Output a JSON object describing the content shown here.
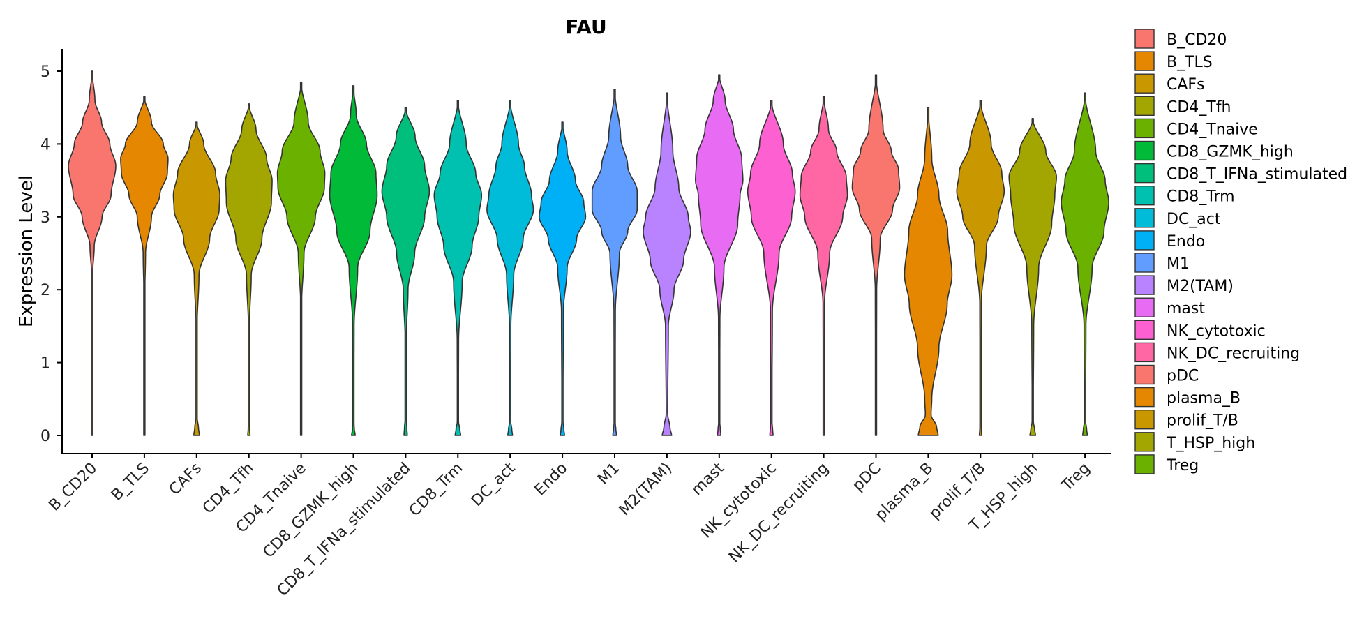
{
  "chart_data": {
    "type": "violin",
    "title": "FAU",
    "xlabel": "",
    "ylabel": "Expression Level",
    "ylim": [
      -0.25,
      5.3
    ],
    "yticks": [
      0,
      1,
      2,
      3,
      4,
      5
    ],
    "legend_position": "right",
    "categories": [
      "B_CD20",
      "B_TLS",
      "CAFs",
      "CD4_Tfh",
      "CD4_Tnaive",
      "CD8_GZMK_high",
      "CD8_T_IFNa_stimulated",
      "CD8_Trm",
      "DC_act",
      "Endo",
      "M1",
      "M2(TAM)",
      "mast",
      "NK_cytotoxic",
      "NK_DC_recruiting",
      "pDC",
      "plasma_B",
      "prolif_T/B",
      "T_HSP_high",
      "Treg"
    ],
    "colors": [
      "#F8766D",
      "#E58700",
      "#C99800",
      "#A3A500",
      "#6BB100",
      "#00BA38",
      "#00BF7D",
      "#00C0AF",
      "#00BCD8",
      "#00B0F6",
      "#619CFF",
      "#B983FF",
      "#E76BF3",
      "#FD61D1",
      "#FF67A4",
      "#F8766D",
      "#E58700",
      "#C99800",
      "#A3A500",
      "#6BB100"
    ],
    "series": [
      {
        "name": "B_CD20",
        "max": 5.0,
        "profile": [
          [
            0,
            0.012
          ],
          [
            1.5,
            0.01
          ],
          [
            2.2,
            0.02
          ],
          [
            2.6,
            0.09
          ],
          [
            3.0,
            0.42
          ],
          [
            3.3,
            0.8
          ],
          [
            3.7,
            1.0
          ],
          [
            4.0,
            0.75
          ],
          [
            4.3,
            0.4
          ],
          [
            4.6,
            0.12
          ],
          [
            5.0,
            0.0
          ]
        ]
      },
      {
        "name": "B_TLS",
        "max": 4.65,
        "profile": [
          [
            0,
            0.012
          ],
          [
            1.8,
            0.01
          ],
          [
            2.5,
            0.05
          ],
          [
            3.0,
            0.3
          ],
          [
            3.3,
            0.65
          ],
          [
            3.6,
            0.97
          ],
          [
            3.8,
            1.0
          ],
          [
            4.0,
            0.8
          ],
          [
            4.3,
            0.3
          ],
          [
            4.65,
            0.0
          ]
        ]
      },
      {
        "name": "CAFs",
        "max": 4.3,
        "profile": [
          [
            0,
            0.12
          ],
          [
            0.1,
            0.08
          ],
          [
            0.25,
            0.02
          ],
          [
            1.5,
            0.02
          ],
          [
            2.2,
            0.1
          ],
          [
            2.7,
            0.55
          ],
          [
            3.1,
            0.95
          ],
          [
            3.3,
            0.98
          ],
          [
            3.6,
            0.8
          ],
          [
            4.0,
            0.3
          ],
          [
            4.3,
            0.0
          ]
        ]
      },
      {
        "name": "CD4_Tfh",
        "max": 4.55,
        "profile": [
          [
            0,
            0.05
          ],
          [
            0.08,
            0.03
          ],
          [
            0.2,
            0.012
          ],
          [
            1.5,
            0.02
          ],
          [
            2.2,
            0.1
          ],
          [
            2.7,
            0.55
          ],
          [
            3.2,
            0.95
          ],
          [
            3.5,
            0.98
          ],
          [
            3.8,
            0.75
          ],
          [
            4.2,
            0.3
          ],
          [
            4.55,
            0.0
          ]
        ]
      },
      {
        "name": "CD4_Tnaive",
        "max": 4.85,
        "profile": [
          [
            0,
            0.012
          ],
          [
            1.8,
            0.02
          ],
          [
            2.5,
            0.12
          ],
          [
            3.0,
            0.6
          ],
          [
            3.4,
            0.98
          ],
          [
            3.6,
            1.0
          ],
          [
            3.9,
            0.8
          ],
          [
            4.3,
            0.3
          ],
          [
            4.85,
            0.0
          ]
        ]
      },
      {
        "name": "CD8_GZMK_high",
        "max": 4.8,
        "profile": [
          [
            0,
            0.08
          ],
          [
            0.08,
            0.04
          ],
          [
            0.2,
            0.015
          ],
          [
            1.5,
            0.03
          ],
          [
            2.3,
            0.18
          ],
          [
            2.8,
            0.7
          ],
          [
            3.3,
            1.0
          ],
          [
            3.6,
            0.95
          ],
          [
            4.0,
            0.55
          ],
          [
            4.4,
            0.12
          ],
          [
            4.8,
            0.0
          ]
        ]
      },
      {
        "name": "CD8_T_IFNa_stimulated",
        "max": 4.5,
        "profile": [
          [
            0,
            0.07
          ],
          [
            0.1,
            0.05
          ],
          [
            0.25,
            0.015
          ],
          [
            1.3,
            0.02
          ],
          [
            2.0,
            0.1
          ],
          [
            2.5,
            0.38
          ],
          [
            3.0,
            0.8
          ],
          [
            3.35,
            1.0
          ],
          [
            3.7,
            0.8
          ],
          [
            4.1,
            0.4
          ],
          [
            4.5,
            0.0
          ]
        ]
      },
      {
        "name": "CD8_Trm",
        "max": 4.6,
        "profile": [
          [
            0,
            0.12
          ],
          [
            0.08,
            0.08
          ],
          [
            0.2,
            0.02
          ],
          [
            1.3,
            0.03
          ],
          [
            2.1,
            0.18
          ],
          [
            2.6,
            0.6
          ],
          [
            3.0,
            0.88
          ],
          [
            3.3,
            1.0
          ],
          [
            3.6,
            0.75
          ],
          [
            4.0,
            0.35
          ],
          [
            4.6,
            0.0
          ]
        ]
      },
      {
        "name": "DC_act",
        "max": 4.6,
        "profile": [
          [
            0,
            0.1
          ],
          [
            0.08,
            0.07
          ],
          [
            0.2,
            0.02
          ],
          [
            1.5,
            0.03
          ],
          [
            2.2,
            0.15
          ],
          [
            2.7,
            0.55
          ],
          [
            3.1,
            0.98
          ],
          [
            3.3,
            0.9
          ],
          [
            3.7,
            0.6
          ],
          [
            4.0,
            0.35
          ],
          [
            4.6,
            0.0
          ]
        ]
      },
      {
        "name": "Endo",
        "max": 4.3,
        "profile": [
          [
            0,
            0.09
          ],
          [
            0.08,
            0.06
          ],
          [
            0.2,
            0.02
          ],
          [
            1.7,
            0.04
          ],
          [
            2.3,
            0.2
          ],
          [
            2.7,
            0.6
          ],
          [
            3.0,
            0.98
          ],
          [
            3.2,
            0.9
          ],
          [
            3.5,
            0.55
          ],
          [
            3.9,
            0.2
          ],
          [
            4.3,
            0.0
          ]
        ]
      },
      {
        "name": "M1",
        "max": 4.75,
        "profile": [
          [
            0,
            0.08
          ],
          [
            0.08,
            0.05
          ],
          [
            0.2,
            0.015
          ],
          [
            1.7,
            0.03
          ],
          [
            2.5,
            0.2
          ],
          [
            2.8,
            0.55
          ],
          [
            3.1,
            0.95
          ],
          [
            3.35,
            0.95
          ],
          [
            3.7,
            0.55
          ],
          [
            4.1,
            0.25
          ],
          [
            4.75,
            0.0
          ]
        ]
      },
      {
        "name": "M2(TAM)",
        "max": 4.7,
        "profile": [
          [
            0,
            0.2
          ],
          [
            0.1,
            0.13
          ],
          [
            0.3,
            0.03
          ],
          [
            1.5,
            0.06
          ],
          [
            2.0,
            0.3
          ],
          [
            2.4,
            0.7
          ],
          [
            2.8,
            1.0
          ],
          [
            3.0,
            0.9
          ],
          [
            3.4,
            0.5
          ],
          [
            3.9,
            0.25
          ],
          [
            4.7,
            0.0
          ]
        ]
      },
      {
        "name": "mast",
        "max": 4.95,
        "profile": [
          [
            0,
            0.07
          ],
          [
            0.08,
            0.05
          ],
          [
            0.2,
            0.015
          ],
          [
            1.6,
            0.03
          ],
          [
            2.3,
            0.2
          ],
          [
            2.9,
            0.78
          ],
          [
            3.3,
            0.88
          ],
          [
            3.5,
            1.0
          ],
          [
            3.8,
            0.95
          ],
          [
            4.2,
            0.6
          ],
          [
            4.6,
            0.25
          ],
          [
            4.95,
            0.0
          ]
        ]
      },
      {
        "name": "NK_cytotoxic",
        "max": 4.6,
        "profile": [
          [
            0,
            0.07
          ],
          [
            0.08,
            0.05
          ],
          [
            0.2,
            0.015
          ],
          [
            1.7,
            0.04
          ],
          [
            2.5,
            0.32
          ],
          [
            3.0,
            0.85
          ],
          [
            3.35,
            1.0
          ],
          [
            3.6,
            0.88
          ],
          [
            4.0,
            0.5
          ],
          [
            4.6,
            0.0
          ]
        ]
      },
      {
        "name": "NK_DC_recruiting",
        "max": 4.65,
        "profile": [
          [
            0,
            0.012
          ],
          [
            1.8,
            0.03
          ],
          [
            2.5,
            0.25
          ],
          [
            3.0,
            0.8
          ],
          [
            3.3,
            1.0
          ],
          [
            3.55,
            0.95
          ],
          [
            3.9,
            0.55
          ],
          [
            4.2,
            0.2
          ],
          [
            4.65,
            0.0
          ]
        ]
      },
      {
        "name": "pDC",
        "max": 4.95,
        "profile": [
          [
            0,
            0.012
          ],
          [
            2.0,
            0.03
          ],
          [
            2.7,
            0.18
          ],
          [
            3.1,
            0.7
          ],
          [
            3.4,
            1.0
          ],
          [
            3.65,
            0.95
          ],
          [
            3.9,
            0.65
          ],
          [
            4.2,
            0.3
          ],
          [
            4.95,
            0.0
          ]
        ]
      },
      {
        "name": "plasma_B",
        "max": 4.5,
        "profile": [
          [
            0,
            0.42
          ],
          [
            0.12,
            0.35
          ],
          [
            0.28,
            0.12
          ],
          [
            0.5,
            0.15
          ],
          [
            1.2,
            0.45
          ],
          [
            1.8,
            0.8
          ],
          [
            2.2,
            1.0
          ],
          [
            2.8,
            0.82
          ],
          [
            3.3,
            0.45
          ],
          [
            3.8,
            0.15
          ],
          [
            4.5,
            0.0
          ]
        ]
      },
      {
        "name": "prolif_T/B",
        "max": 4.6,
        "profile": [
          [
            0,
            0.05
          ],
          [
            0.08,
            0.03
          ],
          [
            0.2,
            0.012
          ],
          [
            1.8,
            0.03
          ],
          [
            2.6,
            0.25
          ],
          [
            3.0,
            0.75
          ],
          [
            3.35,
            1.0
          ],
          [
            3.6,
            0.9
          ],
          [
            4.0,
            0.45
          ],
          [
            4.6,
            0.0
          ]
        ]
      },
      {
        "name": "T_HSP_high",
        "max": 4.35,
        "profile": [
          [
            0,
            0.12
          ],
          [
            0.08,
            0.08
          ],
          [
            0.2,
            0.02
          ],
          [
            1.5,
            0.04
          ],
          [
            2.3,
            0.25
          ],
          [
            2.9,
            0.8
          ],
          [
            3.3,
            0.93
          ],
          [
            3.55,
            1.0
          ],
          [
            3.9,
            0.55
          ],
          [
            4.35,
            0.0
          ]
        ]
      },
      {
        "name": "Treg",
        "max": 4.7,
        "profile": [
          [
            0,
            0.1
          ],
          [
            0.08,
            0.07
          ],
          [
            0.2,
            0.02
          ],
          [
            1.5,
            0.04
          ],
          [
            2.3,
            0.3
          ],
          [
            2.8,
            0.8
          ],
          [
            3.2,
            1.0
          ],
          [
            3.5,
            0.85
          ],
          [
            3.9,
            0.45
          ],
          [
            4.7,
            0.0
          ]
        ]
      }
    ]
  }
}
